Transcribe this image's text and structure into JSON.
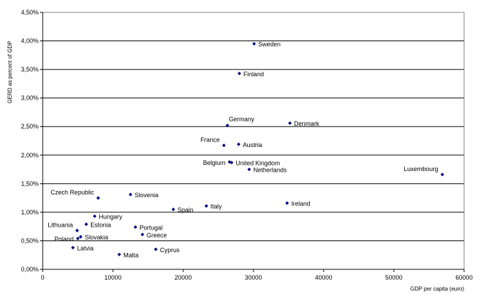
{
  "chart_data": {
    "type": "scatter",
    "title": "",
    "xlabel": "GDP per capita (euro)",
    "ylabel": "GERD as percent of GDP",
    "xlim": [
      0,
      60000
    ],
    "ylim": [
      0,
      4.5
    ],
    "grid": "horizontal",
    "marker_color": "#000080",
    "x_ticks": [
      {
        "value": 0,
        "label": "0"
      },
      {
        "value": 10000,
        "label": "10000"
      },
      {
        "value": 20000,
        "label": "20000"
      },
      {
        "value": 30000,
        "label": "30000"
      },
      {
        "value": 40000,
        "label": "40000"
      },
      {
        "value": 50000,
        "label": "50000"
      },
      {
        "value": 60000,
        "label": "60000"
      }
    ],
    "y_ticks": [
      {
        "value": 0,
        "label": "0,00%"
      },
      {
        "value": 0.5,
        "label": "0,50%"
      },
      {
        "value": 1.0,
        "label": "1,00%"
      },
      {
        "value": 1.5,
        "label": "1,50%"
      },
      {
        "value": 2.0,
        "label": "2,00%"
      },
      {
        "value": 2.5,
        "label": "2,50%"
      },
      {
        "value": 3.0,
        "label": "3,00%"
      },
      {
        "value": 3.5,
        "label": "3,50%"
      },
      {
        "value": 4.0,
        "label": "4,00%"
      },
      {
        "value": 4.5,
        "label": "4,50%"
      }
    ],
    "points": [
      {
        "label": "Sweden",
        "x": 30100,
        "y": 3.95,
        "label_side": "right"
      },
      {
        "label": "Finland",
        "x": 28000,
        "y": 3.43,
        "label_side": "right"
      },
      {
        "label": "Germany",
        "x": 26300,
        "y": 2.52,
        "label_side": "above-right"
      },
      {
        "label": "Denmark",
        "x": 35200,
        "y": 2.56,
        "label_side": "right"
      },
      {
        "label": "France",
        "x": 25800,
        "y": 2.17,
        "label_side": "above-left"
      },
      {
        "label": "Austria",
        "x": 27900,
        "y": 2.19,
        "label_side": "right"
      },
      {
        "label": "Belgium",
        "x": 26600,
        "y": 1.88,
        "label_side": "left"
      },
      {
        "label": "United Kingdom",
        "x": 26900,
        "y": 1.87,
        "label_side": "right"
      },
      {
        "label": "Netherlands",
        "x": 29400,
        "y": 1.75,
        "label_side": "right"
      },
      {
        "label": "Luxembourg",
        "x": 56900,
        "y": 1.66,
        "label_side": "above-left"
      },
      {
        "label": "Czech Republic",
        "x": 7900,
        "y": 1.25,
        "label_side": "above-left"
      },
      {
        "label": "Slovenia",
        "x": 12500,
        "y": 1.31,
        "label_side": "right"
      },
      {
        "label": "Spain",
        "x": 18600,
        "y": 1.05,
        "label_side": "right"
      },
      {
        "label": "Italy",
        "x": 23300,
        "y": 1.11,
        "label_side": "right"
      },
      {
        "label": "Ireland",
        "x": 34800,
        "y": 1.16,
        "label_side": "right"
      },
      {
        "label": "Hungary",
        "x": 7400,
        "y": 0.93,
        "label_side": "right"
      },
      {
        "label": "Estonia",
        "x": 6200,
        "y": 0.79,
        "label_side": "right"
      },
      {
        "label": "Lithuania",
        "x": 4900,
        "y": 0.68,
        "label_side": "above-left"
      },
      {
        "label": "Portugal",
        "x": 13200,
        "y": 0.74,
        "label_side": "right"
      },
      {
        "label": "Greece",
        "x": 14200,
        "y": 0.61,
        "label_side": "right"
      },
      {
        "label": "Poland",
        "x": 5000,
        "y": 0.54,
        "label_side": "left"
      },
      {
        "label": "Slovakia",
        "x": 5400,
        "y": 0.57,
        "label_side": "right"
      },
      {
        "label": "Latvia",
        "x": 4300,
        "y": 0.38,
        "label_side": "right"
      },
      {
        "label": "Cyprus",
        "x": 16100,
        "y": 0.35,
        "label_side": "right"
      },
      {
        "label": "Malta",
        "x": 10900,
        "y": 0.26,
        "label_side": "right"
      }
    ]
  }
}
